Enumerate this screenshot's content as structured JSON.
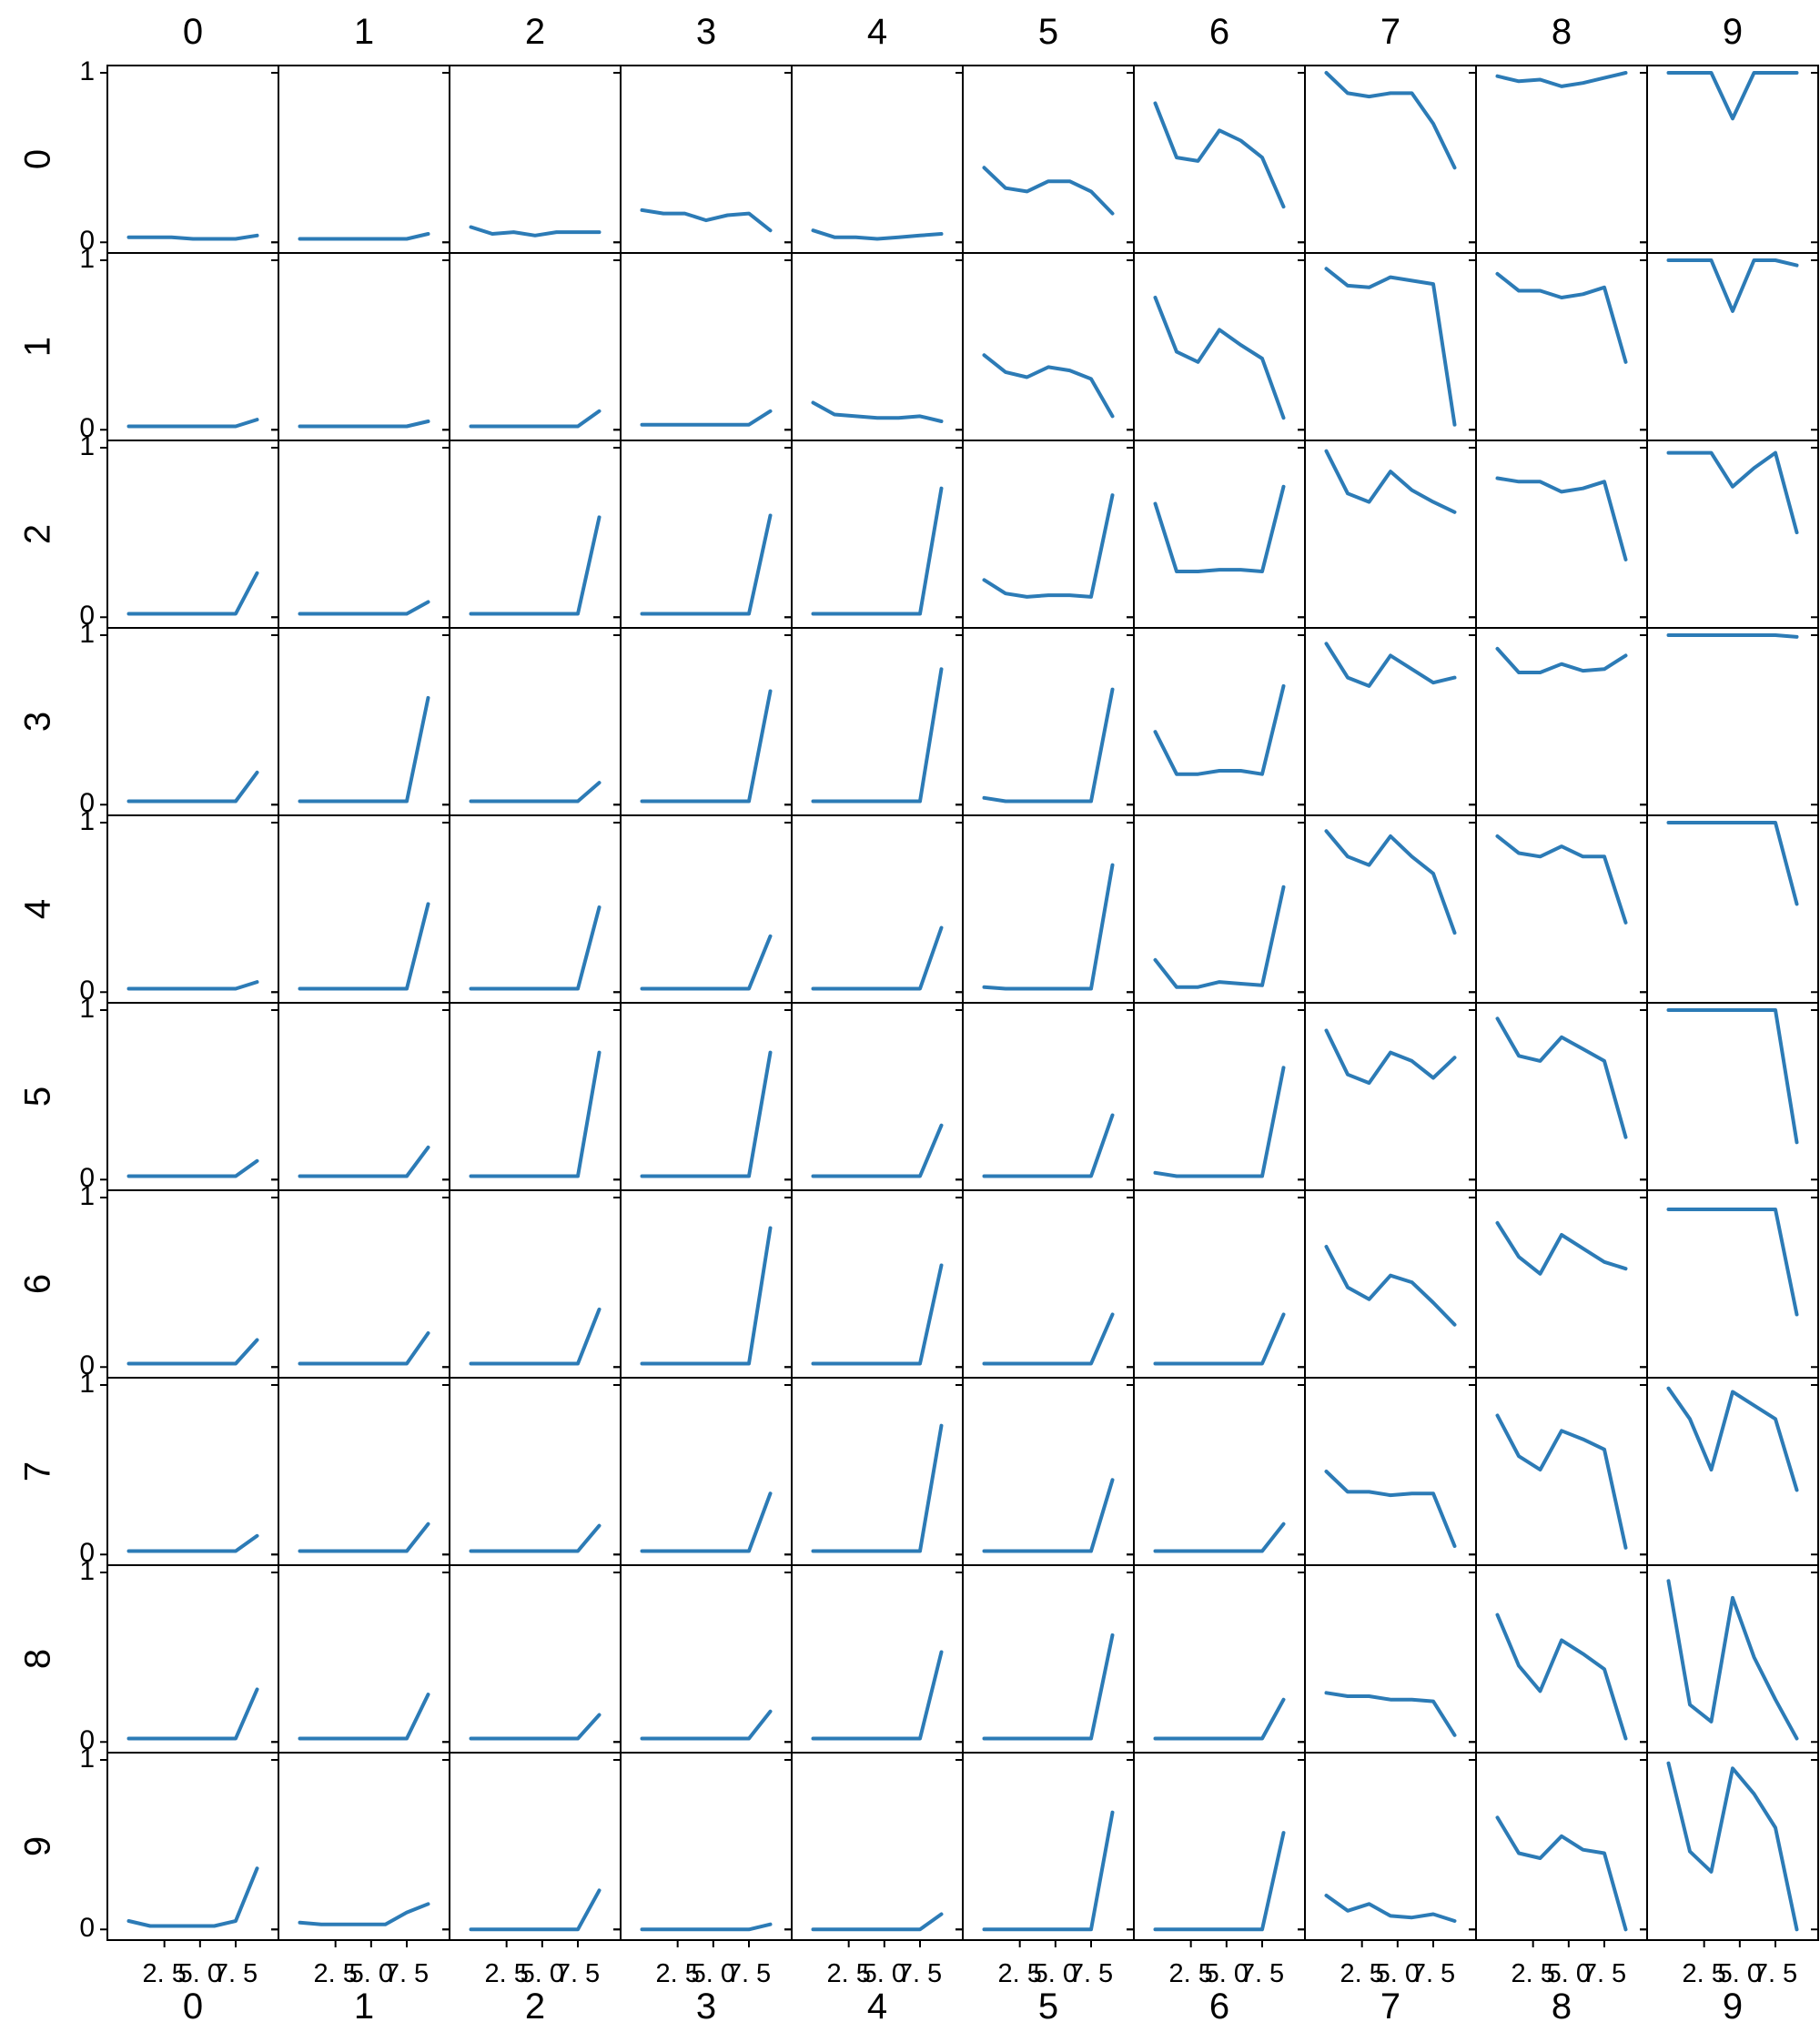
{
  "chart_data": {
    "type": "line",
    "layout": "facet-grid",
    "grid": false,
    "rows": [
      "0",
      "1",
      "2",
      "3",
      "4",
      "5",
      "6",
      "7",
      "8",
      "9"
    ],
    "cols": [
      "0",
      "1",
      "2",
      "3",
      "4",
      "5",
      "6",
      "7",
      "8",
      "9"
    ],
    "x": [
      0,
      1.5,
      3,
      4.5,
      6,
      7.5,
      9
    ],
    "xlim": [
      -1.5,
      10.5
    ],
    "xticks": [
      2.5,
      5.0,
      7.5
    ],
    "xtick_labels": [
      "2. 5",
      "5. 0",
      "7. 5"
    ],
    "ylim": [
      -0.02,
      1.0
    ],
    "yticks": [
      0,
      1
    ],
    "ytick_labels": [
      "0",
      "1"
    ],
    "line_color": "#2c7bb6",
    "panels": [
      [
        [
          0.03,
          0.03,
          0.03,
          0.02,
          0.02,
          0.02,
          0.04
        ],
        [
          0.02,
          0.02,
          0.02,
          0.02,
          0.02,
          0.02,
          0.05
        ],
        [
          0.09,
          0.05,
          0.06,
          0.04,
          0.06,
          0.06,
          0.06
        ],
        [
          0.19,
          0.17,
          0.17,
          0.13,
          0.16,
          0.17,
          0.07
        ],
        [
          0.07,
          0.03,
          0.03,
          0.02,
          0.03,
          0.04,
          0.05
        ],
        [
          0.44,
          0.32,
          0.3,
          0.36,
          0.36,
          0.3,
          0.17
        ],
        [
          0.82,
          0.5,
          0.48,
          0.66,
          0.6,
          0.5,
          0.21
        ],
        [
          1.0,
          0.88,
          0.86,
          0.88,
          0.88,
          0.7,
          0.44
        ],
        [
          0.98,
          0.95,
          0.96,
          0.92,
          0.94,
          0.97,
          1.0
        ],
        [
          1.0,
          1.0,
          1.0,
          0.73,
          1.0,
          1.0,
          1.0
        ]
      ],
      [
        [
          0.02,
          0.02,
          0.02,
          0.02,
          0.02,
          0.02,
          0.06
        ],
        [
          0.02,
          0.02,
          0.02,
          0.02,
          0.02,
          0.02,
          0.05
        ],
        [
          0.02,
          0.02,
          0.02,
          0.02,
          0.02,
          0.02,
          0.11
        ],
        [
          0.03,
          0.03,
          0.03,
          0.03,
          0.03,
          0.03,
          0.11
        ],
        [
          0.16,
          0.09,
          0.08,
          0.07,
          0.07,
          0.08,
          0.05
        ],
        [
          0.44,
          0.34,
          0.31,
          0.37,
          0.35,
          0.3,
          0.08
        ],
        [
          0.78,
          0.46,
          0.4,
          0.59,
          0.5,
          0.42,
          0.07
        ],
        [
          0.95,
          0.85,
          0.84,
          0.9,
          0.88,
          0.86,
          0.03
        ],
        [
          0.92,
          0.82,
          0.82,
          0.78,
          0.8,
          0.84,
          0.4
        ],
        [
          1.0,
          1.0,
          1.0,
          0.7,
          1.0,
          1.0,
          0.97
        ]
      ],
      [
        [
          0.02,
          0.02,
          0.02,
          0.02,
          0.02,
          0.02,
          0.26
        ],
        [
          0.02,
          0.02,
          0.02,
          0.02,
          0.02,
          0.02,
          0.09
        ],
        [
          0.02,
          0.02,
          0.02,
          0.02,
          0.02,
          0.02,
          0.59
        ],
        [
          0.02,
          0.02,
          0.02,
          0.02,
          0.02,
          0.02,
          0.6
        ],
        [
          0.02,
          0.02,
          0.02,
          0.02,
          0.02,
          0.02,
          0.76
        ],
        [
          0.22,
          0.14,
          0.12,
          0.13,
          0.13,
          0.12,
          0.72
        ],
        [
          0.67,
          0.27,
          0.27,
          0.28,
          0.28,
          0.27,
          0.77
        ],
        [
          0.98,
          0.73,
          0.68,
          0.86,
          0.75,
          0.68,
          0.62
        ],
        [
          0.82,
          0.8,
          0.8,
          0.74,
          0.76,
          0.8,
          0.34
        ],
        [
          0.97,
          0.97,
          0.97,
          0.77,
          0.88,
          0.97,
          0.5
        ]
      ],
      [
        [
          0.02,
          0.02,
          0.02,
          0.02,
          0.02,
          0.02,
          0.19
        ],
        [
          0.02,
          0.02,
          0.02,
          0.02,
          0.02,
          0.02,
          0.63
        ],
        [
          0.02,
          0.02,
          0.02,
          0.02,
          0.02,
          0.02,
          0.13
        ],
        [
          0.02,
          0.02,
          0.02,
          0.02,
          0.02,
          0.02,
          0.67
        ],
        [
          0.02,
          0.02,
          0.02,
          0.02,
          0.02,
          0.02,
          0.8
        ],
        [
          0.04,
          0.02,
          0.02,
          0.02,
          0.02,
          0.02,
          0.68
        ],
        [
          0.43,
          0.18,
          0.18,
          0.2,
          0.2,
          0.18,
          0.7
        ],
        [
          0.95,
          0.75,
          0.7,
          0.88,
          0.8,
          0.72,
          0.75
        ],
        [
          0.92,
          0.78,
          0.78,
          0.83,
          0.79,
          0.8,
          0.88
        ],
        [
          1.0,
          1.0,
          1.0,
          1.0,
          1.0,
          1.0,
          0.99
        ]
      ],
      [
        [
          0.02,
          0.02,
          0.02,
          0.02,
          0.02,
          0.02,
          0.06
        ],
        [
          0.02,
          0.02,
          0.02,
          0.02,
          0.02,
          0.02,
          0.52
        ],
        [
          0.02,
          0.02,
          0.02,
          0.02,
          0.02,
          0.02,
          0.5
        ],
        [
          0.02,
          0.02,
          0.02,
          0.02,
          0.02,
          0.02,
          0.33
        ],
        [
          0.02,
          0.02,
          0.02,
          0.02,
          0.02,
          0.02,
          0.38
        ],
        [
          0.03,
          0.02,
          0.02,
          0.02,
          0.02,
          0.02,
          0.75
        ],
        [
          0.19,
          0.03,
          0.03,
          0.06,
          0.05,
          0.04,
          0.62
        ],
        [
          0.95,
          0.8,
          0.75,
          0.92,
          0.8,
          0.7,
          0.35
        ],
        [
          0.92,
          0.82,
          0.8,
          0.86,
          0.8,
          0.8,
          0.41
        ],
        [
          1.0,
          1.0,
          1.0,
          1.0,
          1.0,
          1.0,
          0.52
        ]
      ],
      [
        [
          0.02,
          0.02,
          0.02,
          0.02,
          0.02,
          0.02,
          0.11
        ],
        [
          0.02,
          0.02,
          0.02,
          0.02,
          0.02,
          0.02,
          0.19
        ],
        [
          0.02,
          0.02,
          0.02,
          0.02,
          0.02,
          0.02,
          0.75
        ],
        [
          0.02,
          0.02,
          0.02,
          0.02,
          0.02,
          0.02,
          0.75
        ],
        [
          0.02,
          0.02,
          0.02,
          0.02,
          0.02,
          0.02,
          0.32
        ],
        [
          0.02,
          0.02,
          0.02,
          0.02,
          0.02,
          0.02,
          0.38
        ],
        [
          0.04,
          0.02,
          0.02,
          0.02,
          0.02,
          0.02,
          0.66
        ],
        [
          0.88,
          0.62,
          0.57,
          0.75,
          0.7,
          0.6,
          0.72
        ],
        [
          0.95,
          0.73,
          0.7,
          0.84,
          0.77,
          0.7,
          0.25
        ],
        [
          1.0,
          1.0,
          1.0,
          1.0,
          1.0,
          1.0,
          0.22
        ]
      ],
      [
        [
          0.02,
          0.02,
          0.02,
          0.02,
          0.02,
          0.02,
          0.16
        ],
        [
          0.02,
          0.02,
          0.02,
          0.02,
          0.02,
          0.02,
          0.2
        ],
        [
          0.02,
          0.02,
          0.02,
          0.02,
          0.02,
          0.02,
          0.34
        ],
        [
          0.02,
          0.02,
          0.02,
          0.02,
          0.02,
          0.02,
          0.82
        ],
        [
          0.02,
          0.02,
          0.02,
          0.02,
          0.02,
          0.02,
          0.6
        ],
        [
          0.02,
          0.02,
          0.02,
          0.02,
          0.02,
          0.02,
          0.31
        ],
        [
          0.02,
          0.02,
          0.02,
          0.02,
          0.02,
          0.02,
          0.31
        ],
        [
          0.71,
          0.47,
          0.4,
          0.54,
          0.5,
          0.38,
          0.25
        ],
        [
          0.85,
          0.65,
          0.55,
          0.78,
          0.7,
          0.62,
          0.58
        ],
        [
          0.93,
          0.93,
          0.93,
          0.93,
          0.93,
          0.93,
          0.31
        ]
      ],
      [
        [
          0.02,
          0.02,
          0.02,
          0.02,
          0.02,
          0.02,
          0.11
        ],
        [
          0.02,
          0.02,
          0.02,
          0.02,
          0.02,
          0.02,
          0.18
        ],
        [
          0.02,
          0.02,
          0.02,
          0.02,
          0.02,
          0.02,
          0.17
        ],
        [
          0.02,
          0.02,
          0.02,
          0.02,
          0.02,
          0.02,
          0.36
        ],
        [
          0.02,
          0.02,
          0.02,
          0.02,
          0.02,
          0.02,
          0.76
        ],
        [
          0.02,
          0.02,
          0.02,
          0.02,
          0.02,
          0.02,
          0.44
        ],
        [
          0.02,
          0.02,
          0.02,
          0.02,
          0.02,
          0.02,
          0.18
        ],
        [
          0.49,
          0.37,
          0.37,
          0.35,
          0.36,
          0.36,
          0.05
        ],
        [
          0.82,
          0.58,
          0.5,
          0.73,
          0.68,
          0.62,
          0.04
        ],
        [
          0.98,
          0.8,
          0.5,
          0.96,
          0.88,
          0.8,
          0.38
        ]
      ],
      [
        [
          0.02,
          0.02,
          0.02,
          0.02,
          0.02,
          0.02,
          0.31
        ],
        [
          0.02,
          0.02,
          0.02,
          0.02,
          0.02,
          0.02,
          0.28
        ],
        [
          0.02,
          0.02,
          0.02,
          0.02,
          0.02,
          0.02,
          0.16
        ],
        [
          0.02,
          0.02,
          0.02,
          0.02,
          0.02,
          0.02,
          0.18
        ],
        [
          0.02,
          0.02,
          0.02,
          0.02,
          0.02,
          0.02,
          0.53
        ],
        [
          0.02,
          0.02,
          0.02,
          0.02,
          0.02,
          0.02,
          0.63
        ],
        [
          0.02,
          0.02,
          0.02,
          0.02,
          0.02,
          0.02,
          0.25
        ],
        [
          0.29,
          0.27,
          0.27,
          0.25,
          0.25,
          0.24,
          0.04
        ],
        [
          0.75,
          0.45,
          0.3,
          0.6,
          0.52,
          0.43,
          0.02
        ],
        [
          0.95,
          0.22,
          0.12,
          0.85,
          0.5,
          0.25,
          0.02
        ]
      ],
      [
        [
          0.05,
          0.02,
          0.02,
          0.02,
          0.02,
          0.05,
          0.36
        ],
        [
          0.04,
          0.03,
          0.03,
          0.03,
          0.03,
          0.1,
          0.15
        ],
        [
          0.0,
          0.0,
          0.0,
          0.0,
          0.0,
          0.0,
          0.23
        ],
        [
          0.0,
          0.0,
          0.0,
          0.0,
          0.0,
          0.0,
          0.03
        ],
        [
          0.0,
          0.0,
          0.0,
          0.0,
          0.0,
          0.0,
          0.09
        ],
        [
          0.0,
          0.0,
          0.0,
          0.0,
          0.0,
          0.0,
          0.69
        ],
        [
          0.0,
          0.0,
          0.0,
          0.0,
          0.0,
          0.0,
          0.57
        ],
        [
          0.2,
          0.11,
          0.15,
          0.08,
          0.07,
          0.09,
          0.05
        ],
        [
          0.66,
          0.45,
          0.42,
          0.55,
          0.47,
          0.45,
          0.0
        ],
        [
          0.98,
          0.46,
          0.34,
          0.95,
          0.8,
          0.6,
          0.0
        ]
      ]
    ]
  }
}
